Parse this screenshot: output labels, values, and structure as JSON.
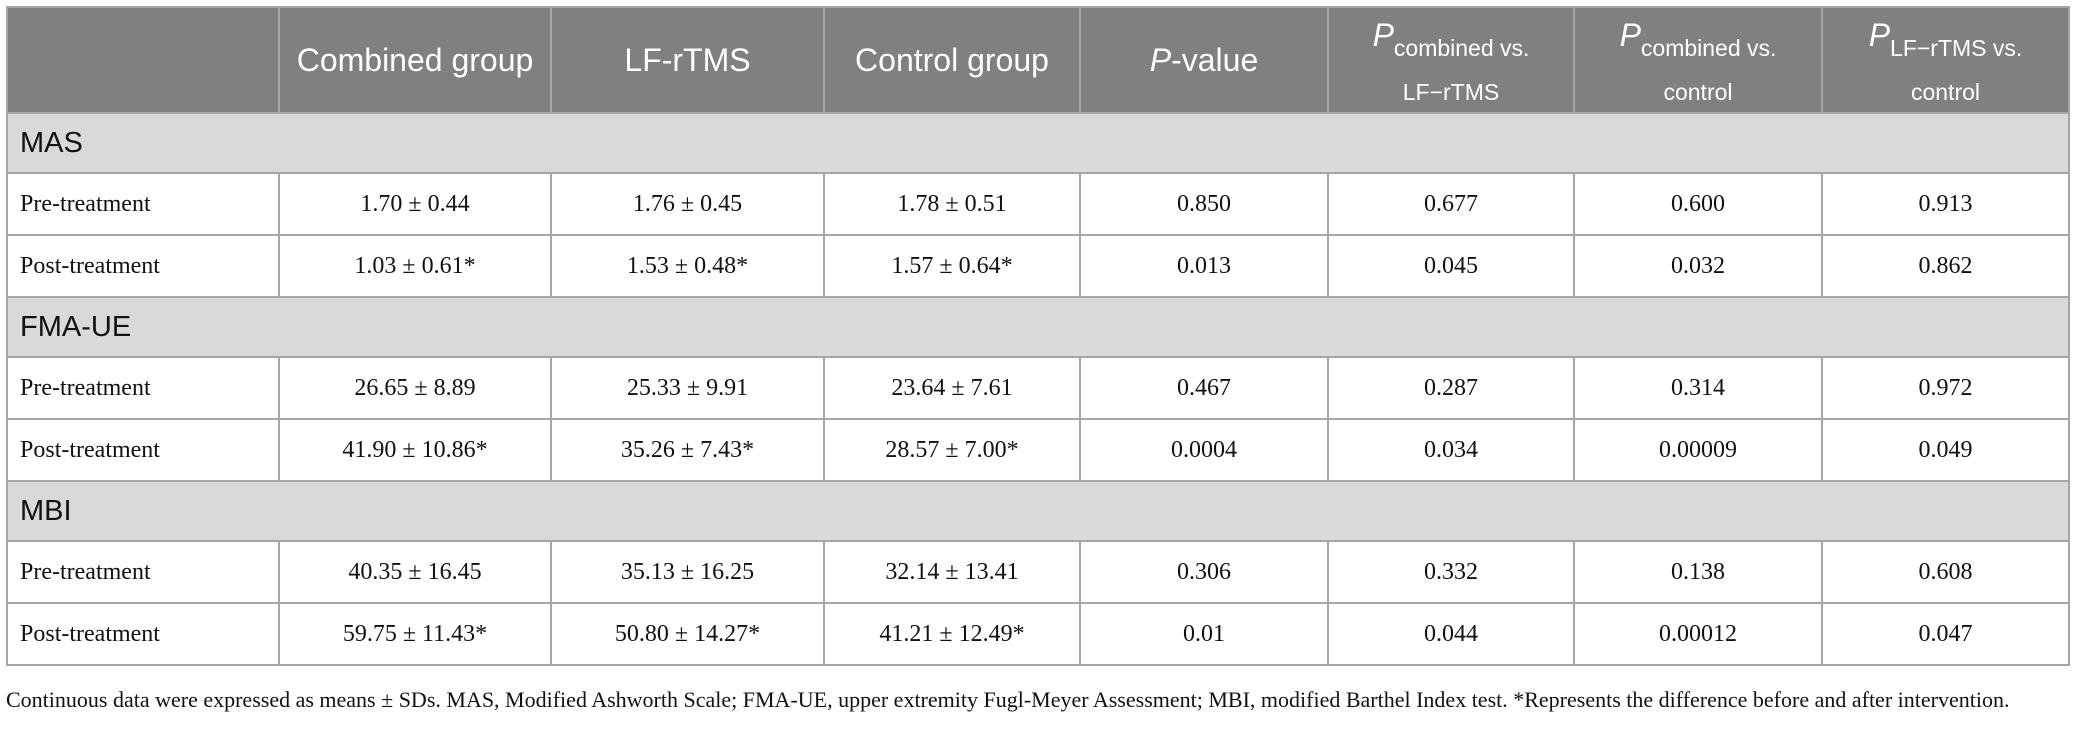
{
  "table": {
    "header": [
      {
        "text": "Combined group"
      },
      {
        "text": "LF-rTMS"
      },
      {
        "text": "Control group"
      },
      {
        "main": "P",
        "rest": "-value"
      },
      {
        "main": "P",
        "sub": "combined vs. LF−rTMS"
      },
      {
        "main": "P",
        "sub": "combined vs. control"
      },
      {
        "main": "P",
        "sub": "LF−rTMS vs. control"
      }
    ],
    "sections": [
      {
        "title": "MAS",
        "rows": [
          [
            "Pre-treatment",
            "1.70 ± 0.44",
            "1.76 ± 0.45",
            "1.78 ± 0.51",
            "0.850",
            "0.677",
            "0.600",
            "0.913"
          ],
          [
            "Post-treatment",
            "1.03 ± 0.61*",
            "1.53 ± 0.48*",
            "1.57 ± 0.64*",
            "0.013",
            "0.045",
            "0.032",
            "0.862"
          ]
        ]
      },
      {
        "title": "FMA-UE",
        "rows": [
          [
            "Pre-treatment",
            "26.65 ± 8.89",
            "25.33 ± 9.91",
            "23.64 ± 7.61",
            "0.467",
            "0.287",
            "0.314",
            "0.972"
          ],
          [
            "Post-treatment",
            "41.90 ± 10.86*",
            "35.26 ± 7.43*",
            "28.57 ± 7.00*",
            "0.0004",
            "0.034",
            "0.00009",
            "0.049"
          ]
        ]
      },
      {
        "title": "MBI",
        "rows": [
          [
            "Pre-treatment",
            "40.35 ± 16.45",
            "35.13 ± 16.25",
            "32.14 ± 13.41",
            "0.306",
            "0.332",
            "0.138",
            "0.608"
          ],
          [
            "Post-treatment",
            "59.75 ± 11.43*",
            "50.80 ± 14.27*",
            "41.21 ± 12.49*",
            "0.01",
            "0.044",
            "0.00012",
            "0.047"
          ]
        ]
      }
    ]
  },
  "footnote": "Continuous data were expressed as means ± SDs. MAS, Modified Ashworth Scale; FMA-UE, upper extremity Fugl-Meyer Assessment; MBI, modified Barthel Index test. *Represents the difference before and after intervention."
}
